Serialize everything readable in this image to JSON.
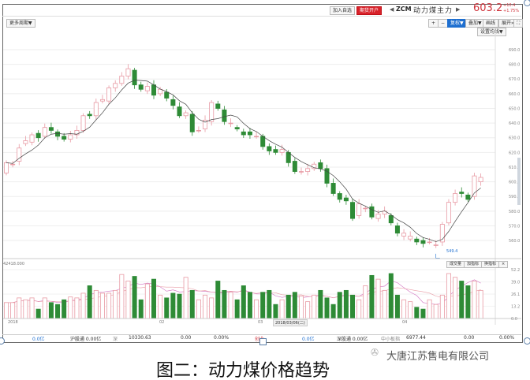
{
  "header": {
    "add_watchlist": "加入自选",
    "open_account": "期货开户",
    "symbol": "ZCM",
    "name": "动力煤主力",
    "price": "603.2",
    "change": "+10.4",
    "change_pct": "+1.75%",
    "prev_arrow": "◀",
    "next_arrow": "▶"
  },
  "toolbar": {
    "period": "更多周期▼",
    "zoom_in": "+",
    "zoom_out": "−",
    "adjust": "复权▼",
    "overlay": "叠加▼",
    "draw": "画线",
    "expand": "展开»",
    "fullscreen": "⛶",
    "ma_setting": "设置均线▼"
  },
  "volume_panel": {
    "max_label": "42418.000",
    "buttons": [
      "成交量",
      "加指标",
      "换指标",
      "×"
    ]
  },
  "low_label": "549.4",
  "xaxis": {
    "labels": [
      "2018",
      "02",
      "03",
      "04"
    ],
    "cursor_date": "2018/03/06(二)"
  },
  "status": [
    "0.0亿",
    "沪股通 0.00亿",
    "深",
    "10330.63",
    "0.00",
    "0.00%",
    "创业",
    "0.0亿",
    "深股通 0.00亿",
    "中小板指",
    "6977.44",
    "0.00",
    "0.00%"
  ],
  "watermark": "大唐江苏售电有限公司",
  "caption": "图二：动力煤价格趋势",
  "colors": {
    "up": "#e89aa4",
    "down": "#2e8b36",
    "accent": "#1e6fd0",
    "price": "#d0343c",
    "ma": "#444444"
  },
  "chart_data": {
    "type": "candlestick",
    "price_ticks": [
      690,
      680,
      670,
      660,
      650,
      640,
      630,
      620,
      610,
      600,
      590,
      580,
      570,
      560
    ],
    "price_tick_labels": [
      "690.0",
      "680.0",
      "670.0",
      "660.0",
      "650.0",
      "640.0",
      "630.0",
      "620.0",
      "610.0",
      "600.0",
      "590.0",
      "580.0",
      "570.0",
      "560.0"
    ],
    "ylim": [
      553,
      697
    ],
    "volume_ticks": [
      "52.2",
      "39.0",
      "26.1",
      "13.2",
      "0.0"
    ],
    "volume_ylim": [
      0,
      52.2
    ],
    "candles": [
      [
        606,
        613
      ],
      [
        612,
        612
      ],
      [
        614,
        623
      ],
      [
        626,
        628
      ],
      [
        627,
        632
      ],
      [
        633,
        630
      ],
      [
        631,
        637
      ],
      [
        637,
        635
      ],
      [
        634,
        631
      ],
      [
        631,
        629
      ],
      [
        629,
        632
      ],
      [
        632,
        635
      ],
      [
        635,
        645
      ],
      [
        646,
        645
      ],
      [
        645,
        654
      ],
      [
        655,
        656
      ],
      [
        655,
        664
      ],
      [
        664,
        667
      ],
      [
        667,
        672
      ],
      [
        672,
        677
      ],
      [
        676,
        666
      ],
      [
        666,
        663
      ],
      [
        662,
        665
      ],
      [
        666,
        659
      ],
      [
        660,
        663
      ],
      [
        661,
        657
      ],
      [
        656,
        652
      ],
      [
        651,
        645
      ],
      [
        645,
        647
      ],
      [
        646,
        634
      ],
      [
        635,
        635
      ],
      [
        636,
        642
      ],
      [
        641,
        654
      ],
      [
        653,
        650
      ],
      [
        649,
        641
      ],
      [
        640,
        640
      ],
      [
        637,
        636
      ],
      [
        634,
        632
      ],
      [
        634,
        632
      ],
      [
        631,
        631
      ],
      [
        631,
        624
      ],
      [
        624,
        621
      ],
      [
        622,
        620
      ],
      [
        620,
        622
      ],
      [
        620,
        613
      ],
      [
        614,
        607
      ],
      [
        607,
        607
      ],
      [
        607,
        609
      ],
      [
        609,
        612
      ],
      [
        613,
        609
      ],
      [
        609,
        599
      ],
      [
        599,
        592
      ],
      [
        592,
        588
      ],
      [
        589,
        587
      ],
      [
        586,
        575
      ],
      [
        577,
        585
      ],
      [
        582,
        582
      ],
      [
        583,
        576
      ],
      [
        575,
        578
      ],
      [
        578,
        580
      ],
      [
        577,
        572
      ],
      [
        570,
        565
      ],
      [
        563,
        565
      ],
      [
        561,
        563
      ],
      [
        561,
        559
      ],
      [
        560,
        558
      ],
      [
        559,
        559
      ],
      [
        557,
        557
      ],
      [
        559,
        571
      ],
      [
        572,
        586
      ],
      [
        586,
        592
      ],
      [
        593,
        592
      ],
      [
        591,
        588
      ],
      [
        590,
        604
      ],
      [
        600,
        603
      ]
    ],
    "volume": [
      17,
      17,
      22,
      20,
      22,
      10,
      22,
      17,
      15,
      20,
      23,
      22,
      27,
      35,
      30,
      27,
      27,
      30,
      47,
      40,
      45,
      20,
      37,
      42,
      25,
      22,
      27,
      26,
      44,
      30,
      20,
      25,
      22,
      40,
      30,
      28,
      20,
      35,
      28,
      20,
      28,
      30,
      15,
      20,
      25,
      28,
      24,
      18,
      25,
      30,
      22,
      15,
      28,
      30,
      25,
      20,
      35,
      46,
      42,
      30,
      48,
      25,
      20,
      18,
      12,
      10,
      20,
      15,
      25,
      48,
      44,
      40,
      35,
      40,
      30
    ]
  }
}
